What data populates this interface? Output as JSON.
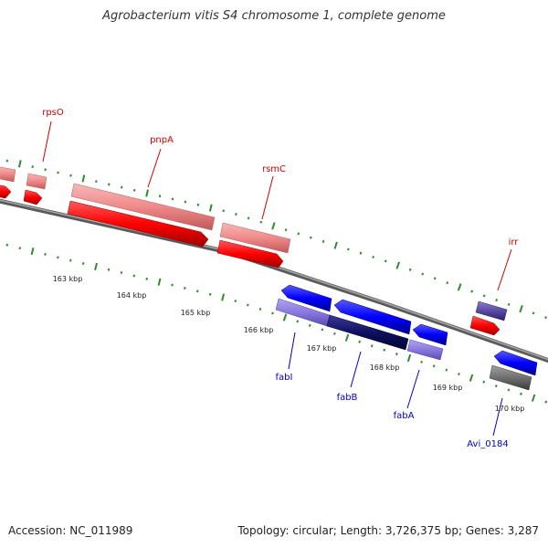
{
  "map": {
    "title": "Agrobacterium vitis S4 chromosome 1, complete genome",
    "accession": "Accession: NC_011989",
    "summary": "Topology: circular; Length: 3,726,375 bp; Genes: 3,287"
  },
  "scale_labels": [
    "163 kbp",
    "164 kbp",
    "165 kbp",
    "166 kbp",
    "167 kbp",
    "168 kbp",
    "169 kbp",
    "170 kbp"
  ],
  "gene_labels": {
    "top": [
      "rpsO",
      "pnpA",
      "rsmC",
      "irr"
    ],
    "bottom": [
      "fabI",
      "fabB",
      "fabA",
      "Avi_0184"
    ]
  },
  "colors": {
    "forward_label": "#cc0000",
    "reverse_label": "#0000cc",
    "tick": "#2e8b2e",
    "backbone": "#808080",
    "red": "#ff0000",
    "pink": "#f08a8a",
    "blue": "#0000ff",
    "lavender": "#8878e0",
    "navy": "#101060",
    "slate": "#5a4aa0",
    "gray": "#707070"
  }
}
